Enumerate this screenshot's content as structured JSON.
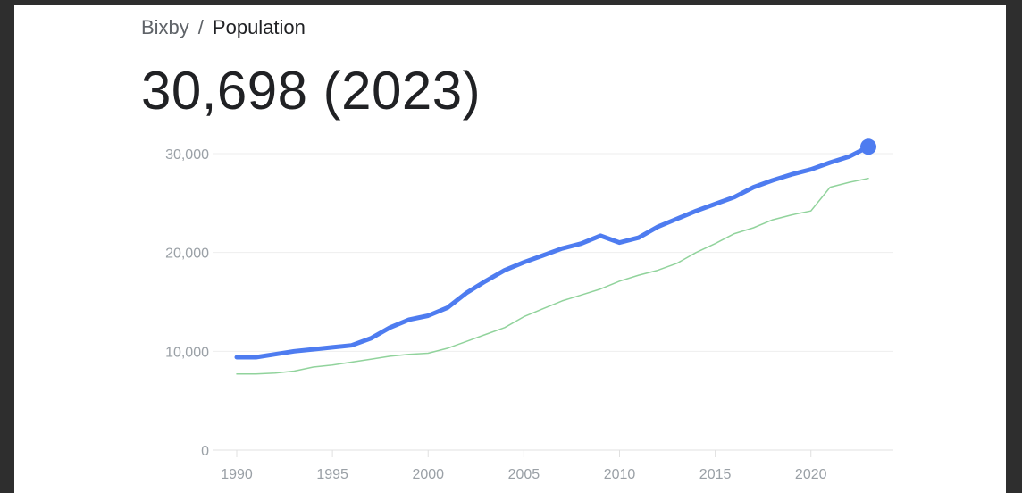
{
  "breadcrumb": {
    "place": "Bixby",
    "separator": "/",
    "topic": "Population"
  },
  "headline": "30,698 (2023)",
  "colors": {
    "primary": "#4e7cf0",
    "secondary": "#91d39c",
    "grid": "#eeeeee",
    "axis": "#e0e0e0",
    "tick": "#9aa0a6"
  },
  "chart_data": {
    "type": "line",
    "xlim": [
      1990,
      2023
    ],
    "ylim": [
      0,
      30000
    ],
    "xticks": [
      1990,
      1995,
      2000,
      2005,
      2010,
      2015,
      2020
    ],
    "yticks": [
      0,
      10000,
      20000,
      30000
    ],
    "ytick_labels": [
      "0",
      "10,000",
      "20,000",
      "30,000"
    ],
    "grid": true,
    "legend": "none",
    "series": [
      {
        "color": "#4e7cf0",
        "x": [
          1990,
          1991,
          1992,
          1993,
          1994,
          1995,
          1996,
          1997,
          1998,
          1999,
          2000,
          2001,
          2002,
          2003,
          2004,
          2005,
          2006,
          2007,
          2008,
          2009,
          2010,
          2011,
          2012,
          2013,
          2014,
          2015,
          2016,
          2017,
          2018,
          2019,
          2020,
          2021,
          2022,
          2023
        ],
        "y": [
          9400,
          9400,
          9700,
          10000,
          10200,
          10400,
          10600,
          11300,
          12400,
          13200,
          13600,
          14400,
          15900,
          17100,
          18200,
          19000,
          19700,
          20400,
          20900,
          21700,
          21000,
          21500,
          22600,
          23400,
          24200,
          24900,
          25600,
          26600,
          27300,
          27900,
          28400,
          29100,
          29700,
          30698
        ],
        "endpoint_marker": true
      },
      {
        "color": "#91d39c",
        "x": [
          1990,
          1991,
          1992,
          1993,
          1994,
          1995,
          1996,
          1997,
          1998,
          1999,
          2000,
          2001,
          2002,
          2003,
          2004,
          2005,
          2006,
          2007,
          2008,
          2009,
          2010,
          2011,
          2012,
          2013,
          2014,
          2015,
          2016,
          2017,
          2018,
          2019,
          2020,
          2021,
          2022,
          2023
        ],
        "y": [
          7700,
          7700,
          7800,
          8000,
          8400,
          8600,
          8900,
          9200,
          9500,
          9700,
          9800,
          10300,
          11000,
          11700,
          12400,
          13500,
          14300,
          15100,
          15700,
          16300,
          17100,
          17700,
          18200,
          18900,
          20000,
          20900,
          21900,
          22500,
          23300,
          23800,
          24200,
          26600,
          27100,
          27500
        ]
      }
    ]
  }
}
